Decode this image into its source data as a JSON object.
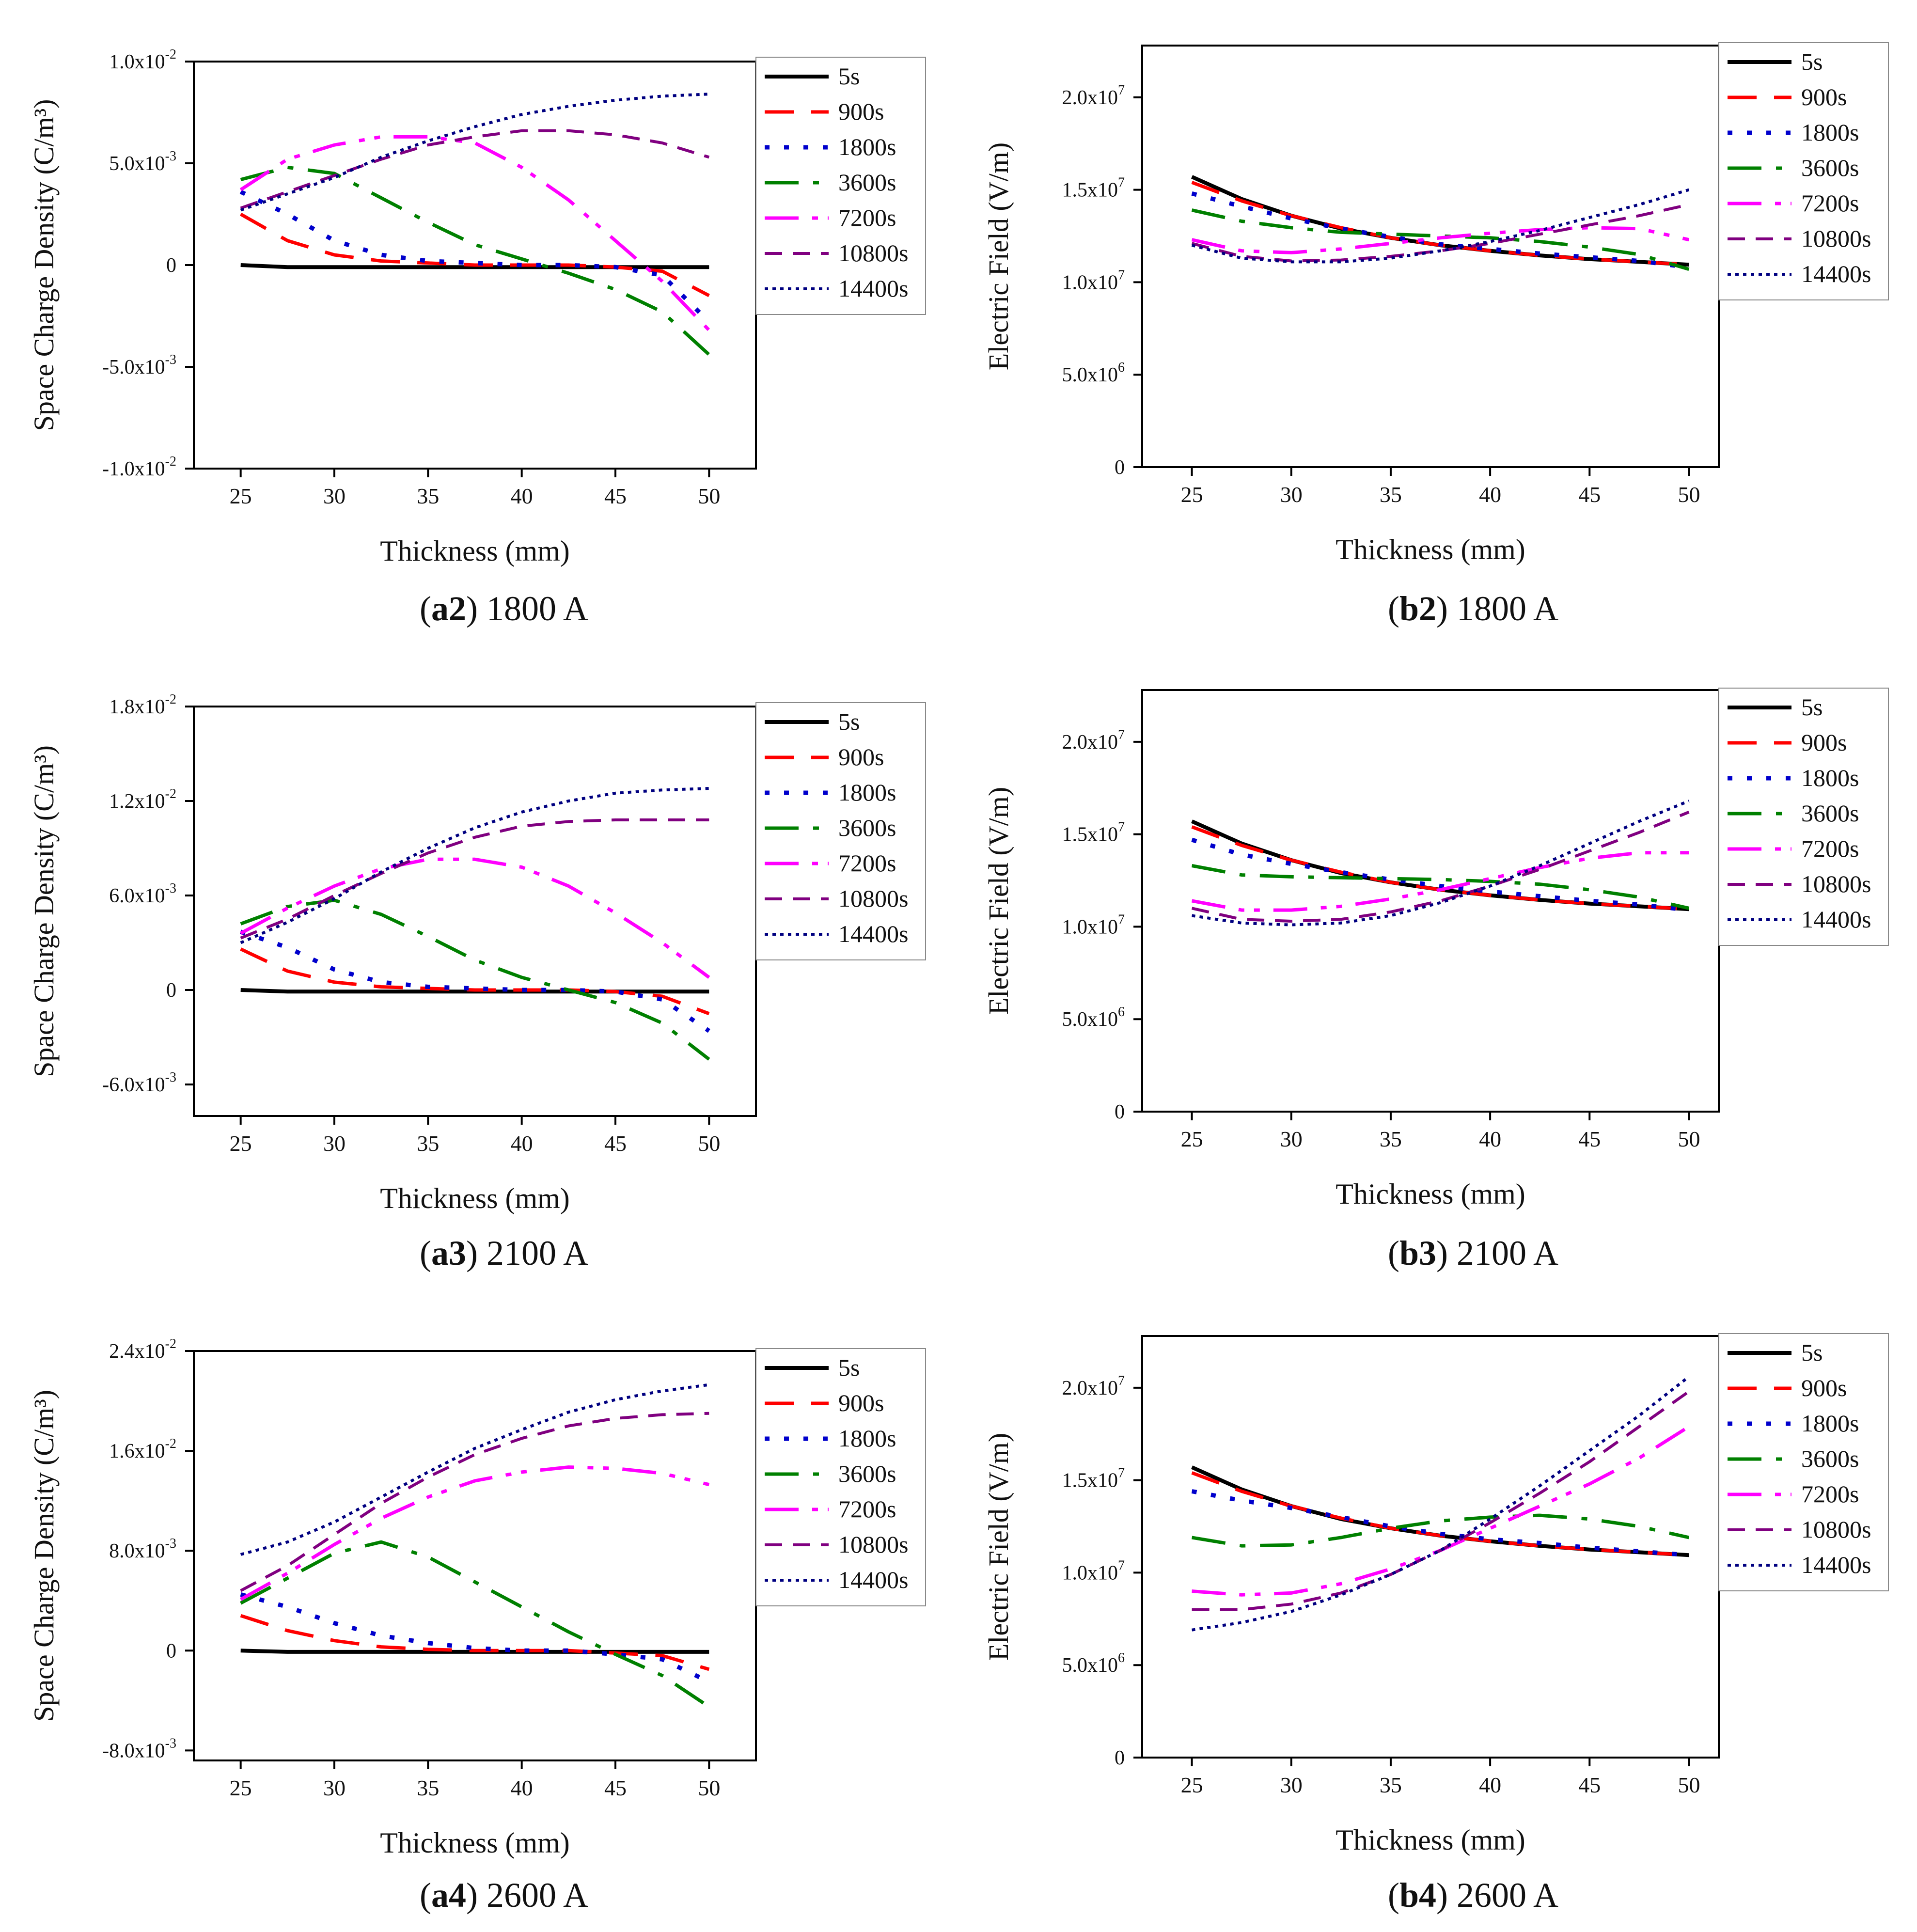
{
  "legend_labels": [
    "5s",
    "900s",
    "1800s",
    "3600s",
    "7200s",
    "10800s",
    "14400s"
  ],
  "series_colors": [
    "#000000",
    "#ff0000",
    "#0000cc",
    "#008000",
    "#ff00ff",
    "#800080",
    "#000080"
  ],
  "chart_data": [
    {
      "id": "a2",
      "type": "line",
      "caption_tag": "a2",
      "caption_text": " 1800 A",
      "xlabel": "Thickness (mm)",
      "ylabel": "Space Charge Density (C/m³)",
      "xlim": [
        22.5,
        52.5
      ],
      "ylim": [
        -0.01,
        0.01
      ],
      "xticks": [
        25,
        30,
        35,
        40,
        45,
        50
      ],
      "yticks": [
        -0.01,
        -0.005,
        0,
        0.005,
        0.01
      ],
      "ytick_labels": [
        [
          "-1.0x10",
          "-2"
        ],
        [
          "-5.0x10",
          "-3"
        ],
        [
          "0",
          ""
        ],
        [
          "5.0x10",
          "-3"
        ],
        [
          "1.0x10",
          "-2"
        ]
      ],
      "x": [
        25,
        27.5,
        30,
        32.5,
        35,
        37.5,
        40,
        42.5,
        45,
        47.5,
        50
      ],
      "series": [
        {
          "name": "5s",
          "values": [
            0,
            -0.0001,
            -0.0001,
            -0.0001,
            -0.0001,
            -0.0001,
            -0.0001,
            -0.0001,
            -0.0001,
            -0.0001,
            -0.0001
          ]
        },
        {
          "name": "900s",
          "values": [
            0.0025,
            0.0012,
            0.0005,
            0.0002,
            0.0001,
            0.0,
            0.0,
            0.0,
            -0.0001,
            -0.0003,
            -0.0015
          ]
        },
        {
          "name": "1800s",
          "values": [
            0.0036,
            0.0025,
            0.0012,
            0.0005,
            0.0002,
            0.0001,
            0.0,
            0.0,
            -0.0001,
            -0.0005,
            -0.0028
          ]
        },
        {
          "name": "3600s",
          "values": [
            0.0042,
            0.0048,
            0.0045,
            0.0033,
            0.0021,
            0.001,
            0.0003,
            -0.0004,
            -0.0012,
            -0.0023,
            -0.0044
          ]
        },
        {
          "name": "7200s",
          "values": [
            0.0037,
            0.0052,
            0.0059,
            0.0063,
            0.0063,
            0.006,
            0.0048,
            0.0032,
            0.0012,
            -0.0008,
            -0.0032
          ]
        },
        {
          "name": "10800s",
          "values": [
            0.0028,
            0.0036,
            0.0044,
            0.0052,
            0.0059,
            0.0063,
            0.0066,
            0.0066,
            0.0064,
            0.006,
            0.0053
          ]
        },
        {
          "name": "14400s",
          "values": [
            0.0027,
            0.0035,
            0.0043,
            0.0053,
            0.0061,
            0.0068,
            0.0074,
            0.0078,
            0.0081,
            0.0083,
            0.0084
          ]
        }
      ]
    },
    {
      "id": "b2",
      "type": "line",
      "caption_tag": "b2",
      "caption_text": " 1800 A",
      "xlabel": "Thickness (mm)",
      "ylabel": "Electric Field (V/m)",
      "xlim": [
        22.5,
        51.5
      ],
      "ylim": [
        0,
        22800000
      ],
      "xticks": [
        25,
        30,
        35,
        40,
        45,
        50
      ],
      "yticks": [
        0,
        5000000,
        10000000,
        15000000,
        20000000
      ],
      "ytick_labels": [
        [
          "0",
          ""
        ],
        [
          "5.0x10",
          "6"
        ],
        [
          "1.0x10",
          "7"
        ],
        [
          "1.5x10",
          "7"
        ],
        [
          "2.0x10",
          "7"
        ]
      ],
      "x": [
        25,
        27.5,
        30,
        32.5,
        35,
        37.5,
        40,
        42.5,
        45,
        47.5,
        50
      ],
      "series": [
        {
          "name": "5s",
          "values": [
            15700000,
            14500000,
            13600000,
            12900000,
            12400000,
            12000000,
            11700000,
            11450000,
            11250000,
            11100000,
            10950000
          ]
        },
        {
          "name": "900s",
          "values": [
            15400000,
            14400000,
            13600000,
            12950000,
            12400000,
            12000000,
            11700000,
            11450000,
            11250000,
            11100000,
            10950000
          ]
        },
        {
          "name": "1800s",
          "values": [
            14800000,
            14100000,
            13450000,
            12900000,
            12450000,
            12050000,
            11800000,
            11550000,
            11350000,
            11150000,
            10800000
          ]
        },
        {
          "name": "3600s",
          "values": [
            13900000,
            13300000,
            12950000,
            12700000,
            12600000,
            12500000,
            12400000,
            12200000,
            11900000,
            11500000,
            10700000
          ]
        },
        {
          "name": "7200s",
          "values": [
            12300000,
            11700000,
            11600000,
            11800000,
            12100000,
            12400000,
            12650000,
            12850000,
            12950000,
            12900000,
            12300000
          ]
        },
        {
          "name": "10800s",
          "values": [
            12100000,
            11400000,
            11150000,
            11200000,
            11400000,
            11700000,
            12100000,
            12600000,
            13100000,
            13600000,
            14200000
          ]
        },
        {
          "name": "14400s",
          "values": [
            12000000,
            11300000,
            11100000,
            11100000,
            11300000,
            11700000,
            12200000,
            12800000,
            13500000,
            14200000,
            15000000
          ]
        }
      ]
    },
    {
      "id": "a3",
      "type": "line",
      "caption_tag": "a3",
      "caption_text": " 2100 A",
      "xlabel": "Thickness (mm)",
      "ylabel": "Space Charge Density (C/m³)",
      "xlim": [
        22.5,
        52.5
      ],
      "ylim": [
        -0.008,
        0.018
      ],
      "xticks": [
        25,
        30,
        35,
        40,
        45,
        50
      ],
      "yticks": [
        -0.006,
        0,
        0.006,
        0.012,
        0.018
      ],
      "ytick_labels": [
        [
          "-6.0x10",
          "-3"
        ],
        [
          "0",
          ""
        ],
        [
          "6.0x10",
          "-3"
        ],
        [
          "1.2x10",
          "-2"
        ],
        [
          "1.8x10",
          "-2"
        ]
      ],
      "x": [
        25,
        27.5,
        30,
        32.5,
        35,
        37.5,
        40,
        42.5,
        45,
        47.5,
        50
      ],
      "series": [
        {
          "name": "5s",
          "values": [
            0,
            -0.0001,
            -0.0001,
            -0.0001,
            -0.0001,
            -0.0001,
            -0.0001,
            -0.0001,
            -0.0001,
            -0.0001,
            -0.0001
          ]
        },
        {
          "name": "900s",
          "values": [
            0.0026,
            0.0012,
            0.0005,
            0.0002,
            0.0001,
            0.0,
            0.0,
            0.0,
            -0.0001,
            -0.0004,
            -0.0015
          ]
        },
        {
          "name": "1800s",
          "values": [
            0.0037,
            0.0027,
            0.0013,
            0.0005,
            0.0002,
            0.0001,
            0.0,
            0.0,
            -0.0001,
            -0.0006,
            -0.0026
          ]
        },
        {
          "name": "3600s",
          "values": [
            0.0042,
            0.0053,
            0.0057,
            0.0048,
            0.0034,
            0.0019,
            0.0008,
            0.0,
            -0.0008,
            -0.0021,
            -0.0044
          ]
        },
        {
          "name": "7200s",
          "values": [
            0.0036,
            0.0052,
            0.0066,
            0.0077,
            0.0083,
            0.0083,
            0.0078,
            0.0066,
            0.0049,
            0.003,
            0.0008
          ]
        },
        {
          "name": "10800s",
          "values": [
            0.0033,
            0.0045,
            0.006,
            0.0074,
            0.0087,
            0.0097,
            0.0104,
            0.0107,
            0.0108,
            0.0108,
            0.0108
          ]
        },
        {
          "name": "14400s",
          "values": [
            0.003,
            0.0043,
            0.0058,
            0.0075,
            0.009,
            0.0103,
            0.0113,
            0.012,
            0.0125,
            0.0127,
            0.0128
          ]
        }
      ]
    },
    {
      "id": "b3",
      "type": "line",
      "caption_tag": "b3",
      "caption_text": " 2100 A",
      "xlabel": "Thickness (mm)",
      "ylabel": "Electric Field (V/m)",
      "xlim": [
        22.5,
        51.5
      ],
      "ylim": [
        0,
        22800000
      ],
      "xticks": [
        25,
        30,
        35,
        40,
        45,
        50
      ],
      "yticks": [
        0,
        5000000,
        10000000,
        15000000,
        20000000
      ],
      "ytick_labels": [
        [
          "0",
          ""
        ],
        [
          "5.0x10",
          "6"
        ],
        [
          "1.0x10",
          "7"
        ],
        [
          "1.5x10",
          "7"
        ],
        [
          "2.0x10",
          "7"
        ]
      ],
      "x": [
        25,
        27.5,
        30,
        32.5,
        35,
        37.5,
        40,
        42.5,
        45,
        47.5,
        50
      ],
      "series": [
        {
          "name": "5s",
          "values": [
            15700000,
            14500000,
            13600000,
            12900000,
            12400000,
            12000000,
            11700000,
            11450000,
            11250000,
            11100000,
            10950000
          ]
        },
        {
          "name": "900s",
          "values": [
            15400000,
            14400000,
            13600000,
            12950000,
            12400000,
            12000000,
            11700000,
            11450000,
            11250000,
            11100000,
            10950000
          ]
        },
        {
          "name": "1800s",
          "values": [
            14700000,
            13900000,
            13400000,
            12950000,
            12550000,
            12200000,
            11900000,
            11650000,
            11400000,
            11200000,
            10900000
          ]
        },
        {
          "name": "3600s",
          "values": [
            13300000,
            12800000,
            12700000,
            12650000,
            12600000,
            12550000,
            12450000,
            12300000,
            12000000,
            11600000,
            11000000
          ]
        },
        {
          "name": "7200s",
          "values": [
            11400000,
            10900000,
            10900000,
            11100000,
            11500000,
            12000000,
            12600000,
            13200000,
            13700000,
            14000000,
            14000000
          ]
        },
        {
          "name": "10800s",
          "values": [
            11000000,
            10400000,
            10300000,
            10400000,
            10800000,
            11400000,
            12200000,
            13100000,
            14100000,
            15100000,
            16200000
          ]
        },
        {
          "name": "14400s",
          "values": [
            10600000,
            10200000,
            10100000,
            10200000,
            10600000,
            11300000,
            12200000,
            13300000,
            14500000,
            15700000,
            16800000
          ]
        }
      ]
    },
    {
      "id": "a4",
      "type": "line",
      "caption_tag": "a4",
      "caption_text": " 2600 A",
      "xlabel": "Thickness (mm)",
      "ylabel": "Space Charge Density (C/m³)",
      "xlim": [
        22.5,
        52.5
      ],
      "ylim": [
        -0.0088,
        0.024
      ],
      "xticks": [
        25,
        30,
        35,
        40,
        45,
        50
      ],
      "yticks": [
        -0.008,
        0,
        0.008,
        0.016,
        0.024
      ],
      "ytick_labels": [
        [
          "-8.0x10",
          "-3"
        ],
        [
          "0",
          ""
        ],
        [
          "8.0x10",
          "-3"
        ],
        [
          "1.6x10",
          "-2"
        ],
        [
          "2.4x10",
          "-2"
        ]
      ],
      "x": [
        25,
        27.5,
        30,
        32.5,
        35,
        37.5,
        40,
        42.5,
        45,
        47.5,
        50
      ],
      "series": [
        {
          "name": "5s",
          "values": [
            0,
            -0.0001,
            -0.0001,
            -0.0001,
            -0.0001,
            -0.0001,
            -0.0001,
            -0.0001,
            -0.0001,
            -0.0001,
            -0.0001
          ]
        },
        {
          "name": "900s",
          "values": [
            0.0028,
            0.0016,
            0.0008,
            0.0003,
            0.0001,
            0.0,
            0.0,
            0.0,
            -0.0002,
            -0.0004,
            -0.0015
          ]
        },
        {
          "name": "1800s",
          "values": [
            0.0045,
            0.0035,
            0.0022,
            0.0012,
            0.0006,
            0.0002,
            0.0,
            0.0,
            -0.0003,
            -0.0007,
            -0.0025
          ]
        },
        {
          "name": "3600s",
          "values": [
            0.0038,
            0.0058,
            0.0078,
            0.0087,
            0.0075,
            0.0055,
            0.0035,
            0.0015,
            -0.0003,
            -0.002,
            -0.0045
          ]
        },
        {
          "name": "7200s",
          "values": [
            0.0041,
            0.0062,
            0.0085,
            0.0106,
            0.0123,
            0.0136,
            0.0143,
            0.0147,
            0.0146,
            0.0142,
            0.0133
          ]
        },
        {
          "name": "10800s",
          "values": [
            0.0048,
            0.0068,
            0.0093,
            0.0118,
            0.0139,
            0.0157,
            0.017,
            0.018,
            0.0186,
            0.0189,
            0.019
          ]
        },
        {
          "name": "14400s",
          "values": [
            0.0077,
            0.0087,
            0.0103,
            0.0123,
            0.0143,
            0.0162,
            0.0177,
            0.0191,
            0.0201,
            0.0208,
            0.0213
          ]
        }
      ]
    },
    {
      "id": "b4",
      "type": "line",
      "caption_tag": "b4",
      "caption_text": " 2600 A",
      "xlabel": "Thickness (mm)",
      "ylabel": "Electric Field (V/m)",
      "xlim": [
        22.5,
        51.5
      ],
      "ylim": [
        0,
        22800000
      ],
      "xticks": [
        25,
        30,
        35,
        40,
        45,
        50
      ],
      "yticks": [
        0,
        5000000,
        10000000,
        15000000,
        20000000
      ],
      "ytick_labels": [
        [
          "0",
          ""
        ],
        [
          "5.0x10",
          "6"
        ],
        [
          "1.0x10",
          "7"
        ],
        [
          "1.5x10",
          "7"
        ],
        [
          "2.0x10",
          "7"
        ]
      ],
      "x": [
        25,
        27.5,
        30,
        32.5,
        35,
        37.5,
        40,
        42.5,
        45,
        47.5,
        50
      ],
      "series": [
        {
          "name": "5s",
          "values": [
            15700000,
            14500000,
            13600000,
            12900000,
            12400000,
            12000000,
            11700000,
            11450000,
            11250000,
            11100000,
            10950000
          ]
        },
        {
          "name": "900s",
          "values": [
            15400000,
            14400000,
            13600000,
            12950000,
            12400000,
            12000000,
            11700000,
            11450000,
            11250000,
            11100000,
            10950000
          ]
        },
        {
          "name": "1800s",
          "values": [
            14400000,
            13900000,
            13500000,
            13000000,
            12500000,
            12100000,
            11800000,
            11600000,
            11350000,
            11150000,
            10950000
          ]
        },
        {
          "name": "3600s",
          "values": [
            11900000,
            11450000,
            11500000,
            11900000,
            12400000,
            12800000,
            13000000,
            13100000,
            12900000,
            12500000,
            11900000
          ]
        },
        {
          "name": "7200s",
          "values": [
            9000000,
            8800000,
            8900000,
            9400000,
            10200000,
            11200000,
            12400000,
            13600000,
            14800000,
            16200000,
            17900000
          ]
        },
        {
          "name": "10800s",
          "values": [
            8000000,
            8000000,
            8300000,
            8900000,
            9900000,
            11200000,
            12700000,
            14300000,
            16000000,
            17900000,
            19800000
          ]
        },
        {
          "name": "14400s",
          "values": [
            6900000,
            7300000,
            7900000,
            8800000,
            9900000,
            11200000,
            12900000,
            14700000,
            16600000,
            18500000,
            20600000
          ]
        }
      ]
    }
  ]
}
